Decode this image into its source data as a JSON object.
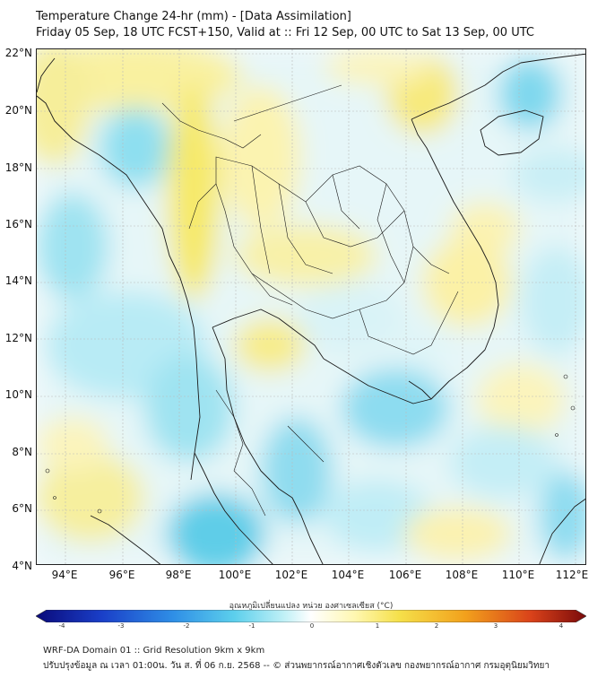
{
  "header": {
    "title_line1": "Temperature Change 24-hr (mm) - [Data Assimilation]",
    "title_line2": "Friday 05 Sep, 18 UTC FCST+150, Valid at :: Fri 12 Sep, 00 UTC to Sat 13 Sep, 00 UTC"
  },
  "map": {
    "lat_labels": [
      "22°N",
      "20°N",
      "18°N",
      "16°N",
      "14°N",
      "12°N",
      "10°N",
      "8°N",
      "6°N",
      "4°N"
    ],
    "lon_labels": [
      "94°E",
      "96°E",
      "98°E",
      "100°E",
      "102°E",
      "104°E",
      "106°E",
      "108°E",
      "110°E",
      "112°E"
    ],
    "lat_range": [
      4,
      22
    ],
    "lon_range": [
      93,
      112.3
    ],
    "gridlines": true,
    "colors": {
      "cold": "#7fd9ec",
      "cool": "#c6eef6",
      "neutral": "#f6fbfb",
      "warm": "#fbf6b0",
      "warmer": "#f7e96a",
      "boundary": "#1a1a1a"
    }
  },
  "colorbar": {
    "title": "อุณหภูมิเปลี่ยนแปลง หน่วย องศาเซลเซียส (°C)",
    "ticks": [
      "-4",
      "-3",
      "-2",
      "-1",
      "0",
      "1",
      "2",
      "3",
      "4"
    ],
    "range": [
      -4,
      4
    ],
    "stops": [
      "#0a0a7a",
      "#1a3fc8",
      "#2f8fe6",
      "#5ccfec",
      "#bff0f6",
      "#ffffff",
      "#fff7b0",
      "#f5e04a",
      "#f2a11c",
      "#d9421a",
      "#7a0a0a"
    ]
  },
  "footer": {
    "line1": "WRF-DA Domain 01 :: Grid Resolution 9km x 9km",
    "line2": "ปรับปรุงข้อมูล ณ เวลา 01:00น. วัน ส. ที่ 06 ก.ย. 2568 -- © ส่วนพยากรณ์อากาศเชิงตัวเลข กองพยากรณ์อากาศ กรมอุตุนิยมวิทยา"
  }
}
